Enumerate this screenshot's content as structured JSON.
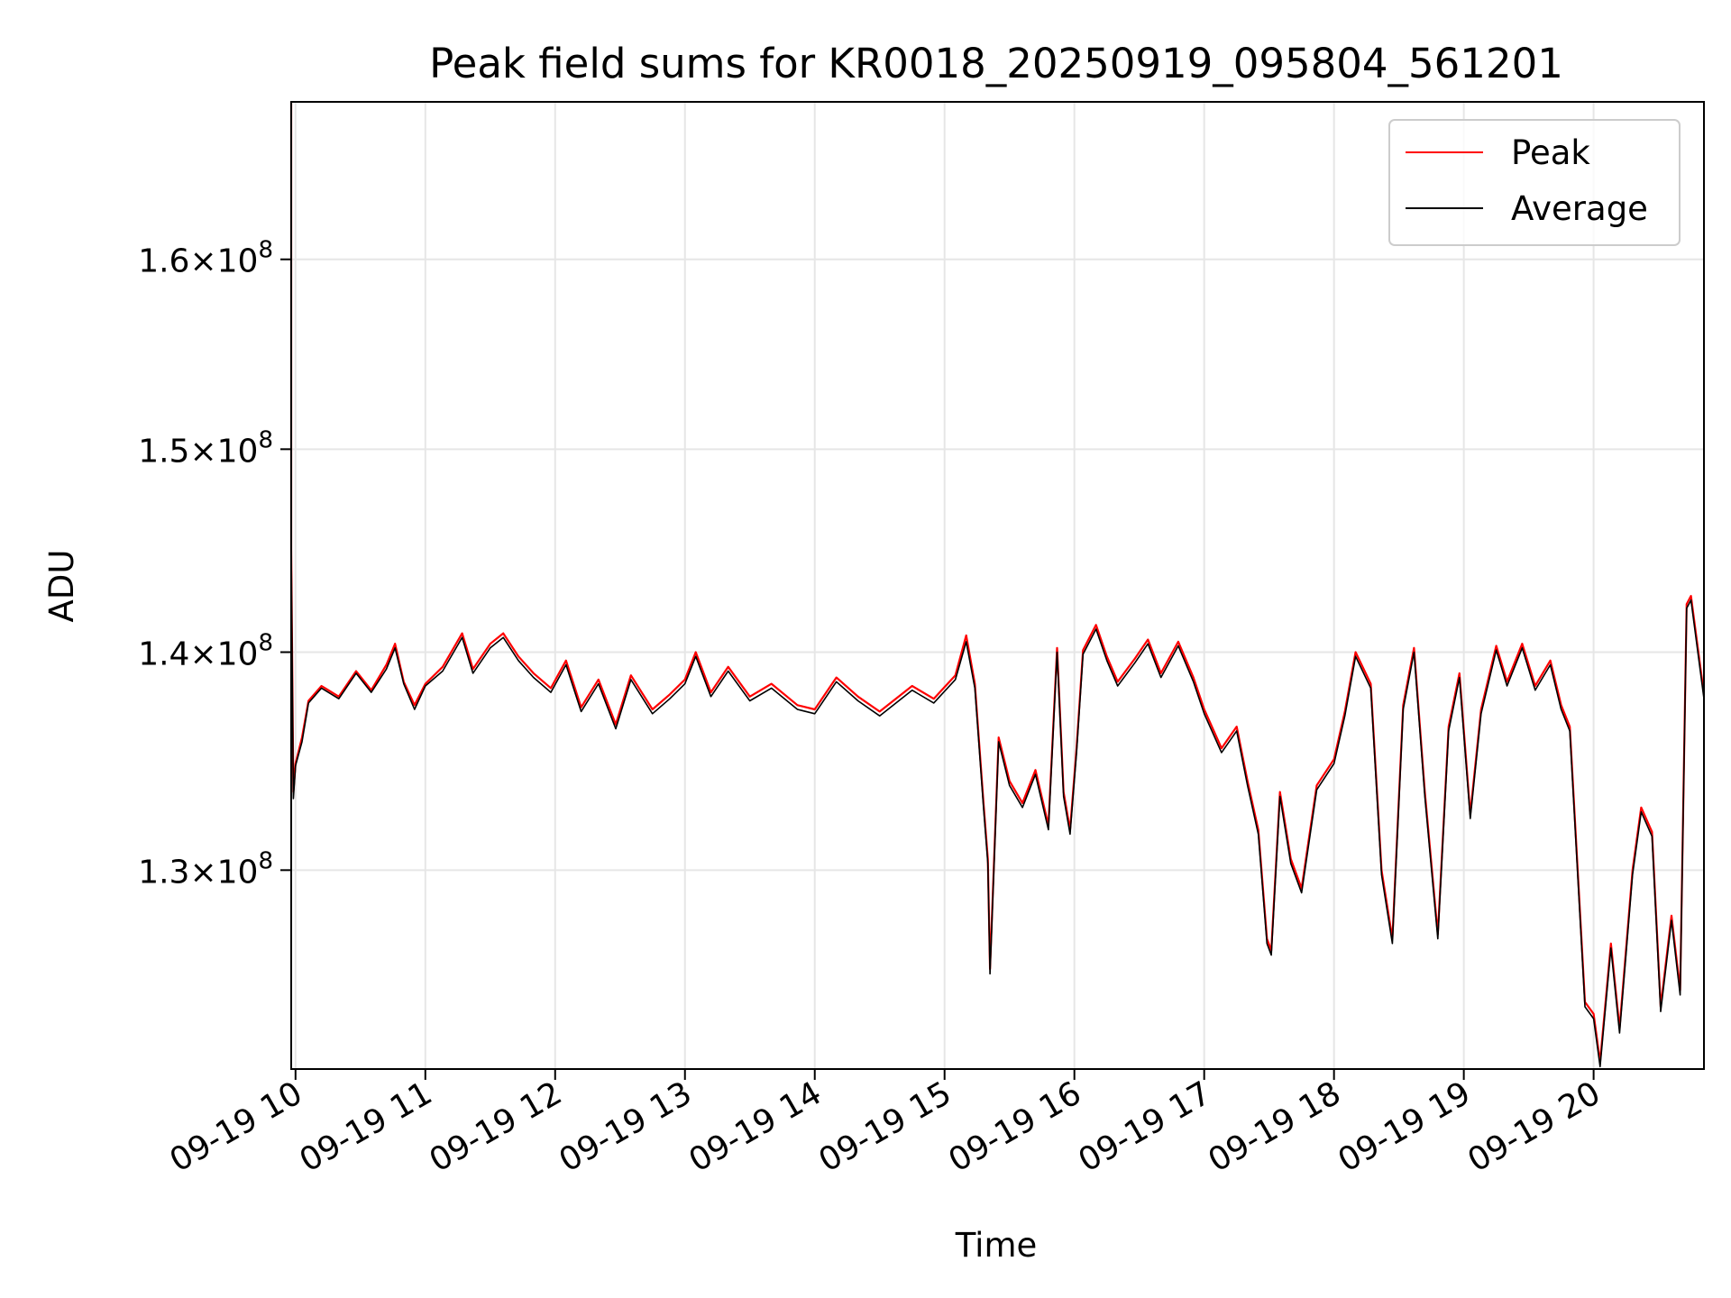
{
  "chart_data": {
    "type": "line",
    "title": "Peak field sums for KR0018_20250919_095804_561201",
    "xlabel": "Time",
    "ylabel": "ADU",
    "y_scale": "log",
    "xlim": [
      "2025-09-19 09:58",
      "2025-09-19 20:51"
    ],
    "ylim": [
      121500000,
      168800000
    ],
    "x_ticks": [
      {
        "value": "2025-09-19 10:00",
        "label": "09-19 10"
      },
      {
        "value": "2025-09-19 11:00",
        "label": "09-19 11"
      },
      {
        "value": "2025-09-19 12:00",
        "label": "09-19 12"
      },
      {
        "value": "2025-09-19 13:00",
        "label": "09-19 13"
      },
      {
        "value": "2025-09-19 14:00",
        "label": "09-19 14"
      },
      {
        "value": "2025-09-19 15:00",
        "label": "09-19 15"
      },
      {
        "value": "2025-09-19 16:00",
        "label": "09-19 16"
      },
      {
        "value": "2025-09-19 17:00",
        "label": "09-19 17"
      },
      {
        "value": "2025-09-19 18:00",
        "label": "09-19 18"
      },
      {
        "value": "2025-09-19 19:00",
        "label": "09-19 19"
      },
      {
        "value": "2025-09-19 20:00",
        "label": "09-19 20"
      }
    ],
    "y_ticks": [
      {
        "value": 130000000,
        "mantissa": "1.3",
        "exponent": "8"
      },
      {
        "value": 140000000,
        "mantissa": "1.4",
        "exponent": "8"
      },
      {
        "value": 150000000,
        "mantissa": "1.5",
        "exponent": "8"
      },
      {
        "value": 160000000,
        "mantissa": "1.6",
        "exponent": "8"
      }
    ],
    "grid": true,
    "legend_position": "top-right",
    "series": [
      {
        "name": "Peak",
        "color": "#ff0000",
        "points": [
          [
            "2025-09-19 09:58",
            168800000
          ],
          [
            "2025-09-19 09:58",
            145000000
          ],
          [
            "2025-09-19 09:59",
            133500000
          ],
          [
            "2025-09-19 10:00",
            134800000
          ],
          [
            "2025-09-19 10:03",
            136000000
          ],
          [
            "2025-09-19 10:06",
            137700000
          ],
          [
            "2025-09-19 10:12",
            138400000
          ],
          [
            "2025-09-19 10:20",
            137900000
          ],
          [
            "2025-09-19 10:28",
            139100000
          ],
          [
            "2025-09-19 10:35",
            138200000
          ],
          [
            "2025-09-19 10:42",
            139400000
          ],
          [
            "2025-09-19 10:46",
            140400000
          ],
          [
            "2025-09-19 10:50",
            138600000
          ],
          [
            "2025-09-19 10:55",
            137500000
          ],
          [
            "2025-09-19 11:00",
            138500000
          ],
          [
            "2025-09-19 11:08",
            139300000
          ],
          [
            "2025-09-19 11:17",
            140900000
          ],
          [
            "2025-09-19 11:22",
            139200000
          ],
          [
            "2025-09-19 11:30",
            140400000
          ],
          [
            "2025-09-19 11:36",
            140900000
          ],
          [
            "2025-09-19 11:43",
            139800000
          ],
          [
            "2025-09-19 11:50",
            139000000
          ],
          [
            "2025-09-19 11:58",
            138300000
          ],
          [
            "2025-09-19 12:05",
            139600000
          ],
          [
            "2025-09-19 12:12",
            137400000
          ],
          [
            "2025-09-19 12:20",
            138700000
          ],
          [
            "2025-09-19 12:28",
            136600000
          ],
          [
            "2025-09-19 12:35",
            138900000
          ],
          [
            "2025-09-19 12:45",
            137300000
          ],
          [
            "2025-09-19 12:53",
            138000000
          ],
          [
            "2025-09-19 13:00",
            138700000
          ],
          [
            "2025-09-19 13:05",
            140000000
          ],
          [
            "2025-09-19 13:12",
            138100000
          ],
          [
            "2025-09-19 13:20",
            139300000
          ],
          [
            "2025-09-19 13:30",
            137900000
          ],
          [
            "2025-09-19 13:40",
            138500000
          ],
          [
            "2025-09-19 13:52",
            137500000
          ],
          [
            "2025-09-19 14:00",
            137300000
          ],
          [
            "2025-09-19 14:10",
            138800000
          ],
          [
            "2025-09-19 14:20",
            137900000
          ],
          [
            "2025-09-19 14:30",
            137200000
          ],
          [
            "2025-09-19 14:45",
            138400000
          ],
          [
            "2025-09-19 14:55",
            137800000
          ],
          [
            "2025-09-19 15:05",
            138900000
          ],
          [
            "2025-09-19 15:10",
            140800000
          ],
          [
            "2025-09-19 15:14",
            138500000
          ],
          [
            "2025-09-19 15:18",
            133000000
          ],
          [
            "2025-09-19 15:20",
            130500000
          ],
          [
            "2025-09-19 15:21",
            125700000
          ],
          [
            "2025-09-19 15:25",
            136000000
          ],
          [
            "2025-09-19 15:30",
            134000000
          ],
          [
            "2025-09-19 15:36",
            133000000
          ],
          [
            "2025-09-19 15:42",
            134500000
          ],
          [
            "2025-09-19 15:48",
            132000000
          ],
          [
            "2025-09-19 15:52",
            140200000
          ],
          [
            "2025-09-19 15:55",
            133500000
          ],
          [
            "2025-09-19 15:58",
            131800000
          ],
          [
            "2025-09-19 16:01",
            135500000
          ],
          [
            "2025-09-19 16:04",
            140100000
          ],
          [
            "2025-09-19 16:10",
            141300000
          ],
          [
            "2025-09-19 16:15",
            139800000
          ],
          [
            "2025-09-19 16:20",
            138600000
          ],
          [
            "2025-09-19 16:28",
            139700000
          ],
          [
            "2025-09-19 16:34",
            140600000
          ],
          [
            "2025-09-19 16:40",
            139000000
          ],
          [
            "2025-09-19 16:48",
            140500000
          ],
          [
            "2025-09-19 16:55",
            138800000
          ],
          [
            "2025-09-19 17:00",
            137300000
          ],
          [
            "2025-09-19 17:08",
            135500000
          ],
          [
            "2025-09-19 17:15",
            136500000
          ],
          [
            "2025-09-19 17:20",
            134000000
          ],
          [
            "2025-09-19 17:25",
            131800000
          ],
          [
            "2025-09-19 17:29",
            127000000
          ],
          [
            "2025-09-19 17:31",
            126500000
          ],
          [
            "2025-09-19 17:35",
            133500000
          ],
          [
            "2025-09-19 17:40",
            130500000
          ],
          [
            "2025-09-19 17:45",
            129200000
          ],
          [
            "2025-09-19 17:52",
            133800000
          ],
          [
            "2025-09-19 18:00",
            135000000
          ],
          [
            "2025-09-19 18:05",
            137200000
          ],
          [
            "2025-09-19 18:10",
            140000000
          ],
          [
            "2025-09-19 18:17",
            138500000
          ],
          [
            "2025-09-19 18:22",
            130000000
          ],
          [
            "2025-09-19 18:27",
            127000000
          ],
          [
            "2025-09-19 18:32",
            137500000
          ],
          [
            "2025-09-19 18:37",
            140200000
          ],
          [
            "2025-09-19 18:42",
            133500000
          ],
          [
            "2025-09-19 18:48",
            127200000
          ],
          [
            "2025-09-19 18:53",
            136500000
          ],
          [
            "2025-09-19 18:58",
            139000000
          ],
          [
            "2025-09-19 19:03",
            132500000
          ],
          [
            "2025-09-19 19:08",
            137300000
          ],
          [
            "2025-09-19 19:15",
            140300000
          ],
          [
            "2025-09-19 19:20",
            138600000
          ],
          [
            "2025-09-19 19:27",
            140400000
          ],
          [
            "2025-09-19 19:33",
            138400000
          ],
          [
            "2025-09-19 19:40",
            139600000
          ],
          [
            "2025-09-19 19:45",
            137500000
          ],
          [
            "2025-09-19 19:49",
            136500000
          ],
          [
            "2025-09-19 19:56",
            124300000
          ],
          [
            "2025-09-19 20:00",
            123800000
          ],
          [
            "2025-09-19 20:03",
            121800000
          ],
          [
            "2025-09-19 20:08",
            126800000
          ],
          [
            "2025-09-19 20:12",
            123200000
          ],
          [
            "2025-09-19 20:18",
            130000000
          ],
          [
            "2025-09-19 20:22",
            132800000
          ],
          [
            "2025-09-19 20:27",
            131700000
          ],
          [
            "2025-09-19 20:31",
            124100000
          ],
          [
            "2025-09-19 20:36",
            128000000
          ],
          [
            "2025-09-19 20:40",
            124800000
          ],
          [
            "2025-09-19 20:43",
            142300000
          ],
          [
            "2025-09-19 20:45",
            142700000
          ],
          [
            "2025-09-19 20:51",
            138000000
          ]
        ]
      },
      {
        "name": "Average",
        "color": "#000000",
        "points": [
          [
            "2025-09-19 09:58",
            145000000
          ],
          [
            "2025-09-19 09:59",
            133200000
          ],
          [
            "2025-09-19 10:00",
            134700000
          ],
          [
            "2025-09-19 10:03",
            135800000
          ],
          [
            "2025-09-19 10:06",
            137600000
          ],
          [
            "2025-09-19 10:12",
            138300000
          ],
          [
            "2025-09-19 10:20",
            137800000
          ],
          [
            "2025-09-19 10:28",
            139000000
          ],
          [
            "2025-09-19 10:35",
            138100000
          ],
          [
            "2025-09-19 10:42",
            139200000
          ],
          [
            "2025-09-19 10:46",
            140200000
          ],
          [
            "2025-09-19 10:50",
            138500000
          ],
          [
            "2025-09-19 10:55",
            137300000
          ],
          [
            "2025-09-19 11:00",
            138400000
          ],
          [
            "2025-09-19 11:08",
            139100000
          ],
          [
            "2025-09-19 11:17",
            140700000
          ],
          [
            "2025-09-19 11:22",
            139000000
          ],
          [
            "2025-09-19 11:30",
            140200000
          ],
          [
            "2025-09-19 11:36",
            140700000
          ],
          [
            "2025-09-19 11:43",
            139600000
          ],
          [
            "2025-09-19 11:50",
            138800000
          ],
          [
            "2025-09-19 11:58",
            138100000
          ],
          [
            "2025-09-19 12:05",
            139400000
          ],
          [
            "2025-09-19 12:12",
            137200000
          ],
          [
            "2025-09-19 12:20",
            138500000
          ],
          [
            "2025-09-19 12:28",
            136400000
          ],
          [
            "2025-09-19 12:35",
            138700000
          ],
          [
            "2025-09-19 12:45",
            137100000
          ],
          [
            "2025-09-19 12:53",
            137800000
          ],
          [
            "2025-09-19 13:00",
            138500000
          ],
          [
            "2025-09-19 13:05",
            139800000
          ],
          [
            "2025-09-19 13:12",
            137900000
          ],
          [
            "2025-09-19 13:20",
            139100000
          ],
          [
            "2025-09-19 13:30",
            137700000
          ],
          [
            "2025-09-19 13:40",
            138300000
          ],
          [
            "2025-09-19 13:52",
            137300000
          ],
          [
            "2025-09-19 14:00",
            137100000
          ],
          [
            "2025-09-19 14:10",
            138600000
          ],
          [
            "2025-09-19 14:20",
            137700000
          ],
          [
            "2025-09-19 14:30",
            137000000
          ],
          [
            "2025-09-19 14:45",
            138200000
          ],
          [
            "2025-09-19 14:55",
            137600000
          ],
          [
            "2025-09-19 15:05",
            138700000
          ],
          [
            "2025-09-19 15:10",
            140500000
          ],
          [
            "2025-09-19 15:14",
            138300000
          ],
          [
            "2025-09-19 15:18",
            132800000
          ],
          [
            "2025-09-19 15:20",
            130300000
          ],
          [
            "2025-09-19 15:21",
            125500000
          ],
          [
            "2025-09-19 15:25",
            135800000
          ],
          [
            "2025-09-19 15:30",
            133800000
          ],
          [
            "2025-09-19 15:36",
            132800000
          ],
          [
            "2025-09-19 15:42",
            134300000
          ],
          [
            "2025-09-19 15:48",
            131800000
          ],
          [
            "2025-09-19 15:52",
            140000000
          ],
          [
            "2025-09-19 15:55",
            133300000
          ],
          [
            "2025-09-19 15:58",
            131600000
          ],
          [
            "2025-09-19 16:01",
            135300000
          ],
          [
            "2025-09-19 16:04",
            139900000
          ],
          [
            "2025-09-19 16:10",
            141100000
          ],
          [
            "2025-09-19 16:15",
            139600000
          ],
          [
            "2025-09-19 16:20",
            138400000
          ],
          [
            "2025-09-19 16:28",
            139500000
          ],
          [
            "2025-09-19 16:34",
            140400000
          ],
          [
            "2025-09-19 16:40",
            138800000
          ],
          [
            "2025-09-19 16:48",
            140300000
          ],
          [
            "2025-09-19 16:55",
            138600000
          ],
          [
            "2025-09-19 17:00",
            137100000
          ],
          [
            "2025-09-19 17:08",
            135300000
          ],
          [
            "2025-09-19 17:15",
            136300000
          ],
          [
            "2025-09-19 17:20",
            133800000
          ],
          [
            "2025-09-19 17:25",
            131600000
          ],
          [
            "2025-09-19 17:29",
            126800000
          ],
          [
            "2025-09-19 17:31",
            126300000
          ],
          [
            "2025-09-19 17:35",
            133300000
          ],
          [
            "2025-09-19 17:40",
            130300000
          ],
          [
            "2025-09-19 17:45",
            129000000
          ],
          [
            "2025-09-19 17:52",
            133600000
          ],
          [
            "2025-09-19 18:00",
            134800000
          ],
          [
            "2025-09-19 18:05",
            137000000
          ],
          [
            "2025-09-19 18:10",
            139800000
          ],
          [
            "2025-09-19 18:17",
            138300000
          ],
          [
            "2025-09-19 18:22",
            129800000
          ],
          [
            "2025-09-19 18:27",
            126800000
          ],
          [
            "2025-09-19 18:32",
            137300000
          ],
          [
            "2025-09-19 18:37",
            140000000
          ],
          [
            "2025-09-19 18:42",
            133300000
          ],
          [
            "2025-09-19 18:48",
            127000000
          ],
          [
            "2025-09-19 18:53",
            136300000
          ],
          [
            "2025-09-19 18:58",
            138800000
          ],
          [
            "2025-09-19 19:03",
            132300000
          ],
          [
            "2025-09-19 19:08",
            137100000
          ],
          [
            "2025-09-19 19:15",
            140100000
          ],
          [
            "2025-09-19 19:20",
            138400000
          ],
          [
            "2025-09-19 19:27",
            140200000
          ],
          [
            "2025-09-19 19:33",
            138200000
          ],
          [
            "2025-09-19 19:40",
            139400000
          ],
          [
            "2025-09-19 19:45",
            137300000
          ],
          [
            "2025-09-19 19:49",
            136300000
          ],
          [
            "2025-09-19 19:56",
            124100000
          ],
          [
            "2025-09-19 20:00",
            123600000
          ],
          [
            "2025-09-19 20:03",
            121600000
          ],
          [
            "2025-09-19 20:08",
            126600000
          ],
          [
            "2025-09-19 20:12",
            123000000
          ],
          [
            "2025-09-19 20:18",
            129800000
          ],
          [
            "2025-09-19 20:22",
            132600000
          ],
          [
            "2025-09-19 20:27",
            131500000
          ],
          [
            "2025-09-19 20:31",
            123900000
          ],
          [
            "2025-09-19 20:36",
            127800000
          ],
          [
            "2025-09-19 20:40",
            124600000
          ],
          [
            "2025-09-19 20:43",
            142100000
          ],
          [
            "2025-09-19 20:45",
            142500000
          ],
          [
            "2025-09-19 20:51",
            137800000
          ]
        ]
      }
    ]
  }
}
